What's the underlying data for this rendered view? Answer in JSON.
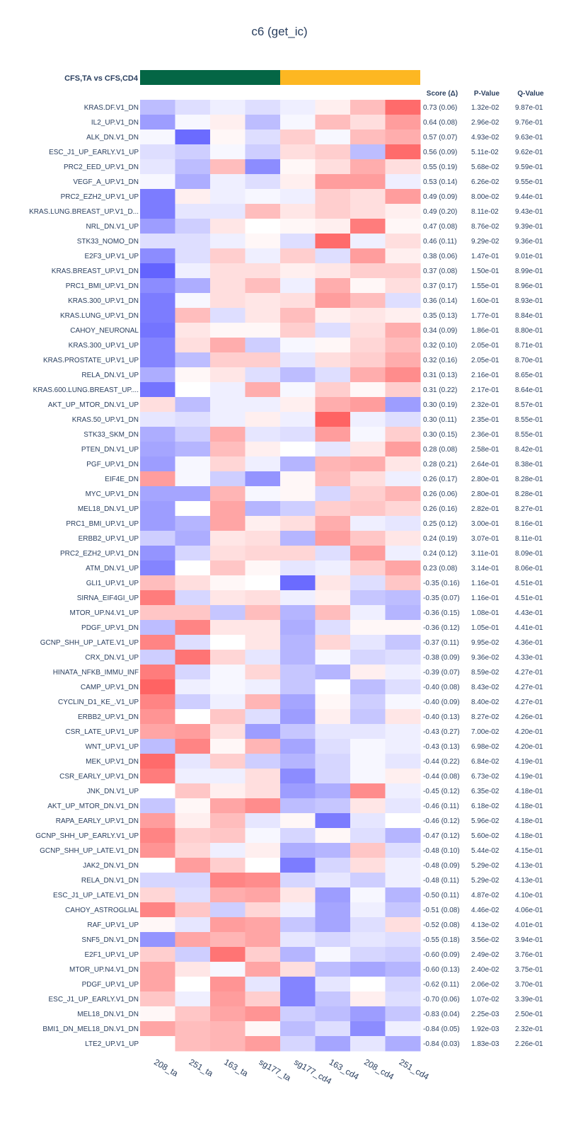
{
  "chart_data": {
    "type": "heatmap",
    "title": "c6 (get_ic)",
    "group_label": "CFS,TA vs CFS,CD4",
    "group_colors": [
      "#046645",
      "#fdb722"
    ],
    "columns": [
      "208_ta",
      "251_ta",
      "163_ta",
      "sg177_ta",
      "sg177_cd4",
      "163_cd4",
      "208_cd4",
      "251_cd4"
    ],
    "column_groups": [
      0,
      0,
      0,
      0,
      1,
      1,
      1,
      1
    ],
    "table_headers": [
      "Score (Δ)",
      "P-Value",
      "Q-Value"
    ],
    "color_scale": {
      "min": -1,
      "max": 1,
      "low": "#5b5bff",
      "mid": "#ffffff",
      "high": "#ff5b5b"
    },
    "rows": [
      {
        "name": "KRAS.DF.V1_DN",
        "score": "0.73 (0.06)",
        "p": "1.32e-02",
        "q": "9.87e-01",
        "values": [
          -0.4,
          -0.2,
          -0.1,
          -0.2,
          -0.1,
          0.1,
          0.4,
          0.9
        ]
      },
      {
        "name": "IL2_UP.V1_DN",
        "score": "0.64 (0.08)",
        "p": "2.96e-02",
        "q": "9.76e-01",
        "values": [
          -0.6,
          -0.05,
          0.1,
          -0.4,
          -0.05,
          0.4,
          0.2,
          0.6
        ]
      },
      {
        "name": "ALK_DN.V1_DN",
        "score": "0.57 (0.07)",
        "p": "4.93e-02",
        "q": "9.63e-01",
        "values": [
          -0.05,
          -0.9,
          0.05,
          -0.2,
          0.3,
          -0.05,
          0.4,
          0.5
        ]
      },
      {
        "name": "ESC_J1_UP_EARLY.V1_UP",
        "score": "0.56 (0.09)",
        "p": "5.11e-02",
        "q": "9.62e-01",
        "values": [
          -0.2,
          -0.3,
          -0.05,
          -0.3,
          0.2,
          0.3,
          -0.4,
          0.9
        ]
      },
      {
        "name": "PRC2_EED_UP.V1_DN",
        "score": "0.55 (0.19)",
        "p": "5.68e-02",
        "q": "9.59e-01",
        "values": [
          -0.15,
          -0.4,
          0.4,
          -0.7,
          0.05,
          0.2,
          0.5,
          0.2
        ]
      },
      {
        "name": "VEGF_A_UP.V1_DN",
        "score": "0.53 (0.14)",
        "p": "6.26e-02",
        "q": "9.55e-01",
        "values": [
          -0.05,
          -0.5,
          -0.1,
          -0.2,
          0.1,
          0.6,
          0.6,
          -0.1
        ]
      },
      {
        "name": "PRC2_EZH2_UP.V1_UP",
        "score": "0.49 (0.09)",
        "p": "8.00e-02",
        "q": "9.44e-01",
        "values": [
          -0.8,
          0.1,
          -0.1,
          -0.05,
          -0.1,
          0.3,
          0.2,
          0.6
        ]
      },
      {
        "name": "KRAS.LUNG.BREAST_UP.V1_D...",
        "score": "0.49 (0.20)",
        "p": "8.11e-02",
        "q": "9.43e-01",
        "values": [
          -0.8,
          -0.15,
          -0.15,
          0.4,
          0.15,
          0.3,
          0.2,
          0.1
        ]
      },
      {
        "name": "NRL_DN.V1_UP",
        "score": "0.47 (0.08)",
        "p": "8.76e-02",
        "q": "9.39e-01",
        "values": [
          -0.6,
          -0.3,
          0.15,
          0.0,
          0.05,
          0.1,
          0.8,
          0.05
        ]
      },
      {
        "name": "STK33_NOMO_DN",
        "score": "0.46 (0.11)",
        "p": "9.29e-02",
        "q": "9.36e-01",
        "values": [
          -0.2,
          -0.2,
          -0.1,
          0.05,
          -0.2,
          0.9,
          -0.1,
          0.2
        ]
      },
      {
        "name": "E2F3_UP.V1_UP",
        "score": "0.38 (0.06)",
        "p": "1.47e-01",
        "q": "9.01e-01",
        "values": [
          -0.7,
          -0.2,
          0.3,
          -0.1,
          0.3,
          -0.2,
          0.6,
          0.1
        ]
      },
      {
        "name": "KRAS.BREAST_UP.V1_DN",
        "score": "0.37 (0.08)",
        "p": "1.50e-01",
        "q": "8.99e-01",
        "values": [
          -0.95,
          -0.1,
          0.2,
          0.2,
          0.1,
          0.15,
          0.3,
          0.3
        ]
      },
      {
        "name": "PRC1_BMI_UP.V1_DN",
        "score": "0.37 (0.17)",
        "p": "1.55e-01",
        "q": "8.96e-01",
        "values": [
          -0.7,
          -0.5,
          0.2,
          0.4,
          -0.1,
          0.5,
          0.05,
          0.2
        ]
      },
      {
        "name": "KRAS.300_UP.V1_DN",
        "score": "0.36 (0.14)",
        "p": "1.60e-01",
        "q": "8.93e-01",
        "values": [
          -0.8,
          -0.05,
          0.2,
          0.15,
          0.2,
          0.6,
          0.4,
          -0.2
        ]
      },
      {
        "name": "KRAS.LUNG_UP.V1_DN",
        "score": "0.35 (0.13)",
        "p": "1.77e-01",
        "q": "8.84e-01",
        "values": [
          -0.8,
          0.4,
          -0.2,
          0.15,
          0.4,
          0.1,
          0.15,
          0.1
        ]
      },
      {
        "name": "CAHOY_NEURONAL",
        "score": "0.34 (0.09)",
        "p": "1.86e-01",
        "q": "8.80e-01",
        "values": [
          -0.85,
          0.15,
          0.05,
          0.05,
          0.3,
          -0.2,
          0.2,
          0.5
        ]
      },
      {
        "name": "KRAS.300_UP.V1_UP",
        "score": "0.32 (0.10)",
        "p": "2.05e-01",
        "q": "8.71e-01",
        "values": [
          -0.75,
          0.2,
          0.5,
          -0.3,
          -0.05,
          0.05,
          0.25,
          0.4
        ]
      },
      {
        "name": "KRAS.PROSTATE_UP.V1_UP",
        "score": "0.32 (0.16)",
        "p": "2.05e-01",
        "q": "8.70e-01",
        "values": [
          -0.75,
          -0.4,
          0.3,
          0.3,
          -0.15,
          0.2,
          0.3,
          0.5
        ]
      },
      {
        "name": "RELA_DN.V1_UP",
        "score": "0.31 (0.13)",
        "p": "2.16e-01",
        "q": "8.65e-01",
        "values": [
          -0.5,
          0.05,
          0.15,
          -0.2,
          -0.4,
          -0.2,
          0.5,
          0.7
        ]
      },
      {
        "name": "KRAS.600.LUNG.BREAST_UP....",
        "score": "0.31 (0.22)",
        "p": "2.17e-01",
        "q": "8.64e-01",
        "values": [
          -0.85,
          0.0,
          -0.1,
          0.5,
          -0.05,
          0.3,
          0.05,
          0.3
        ]
      },
      {
        "name": "AKT_UP_MTOR_DN.V1_UP",
        "score": "0.30 (0.19)",
        "p": "2.32e-01",
        "q": "8.57e-01",
        "values": [
          0.2,
          -0.4,
          -0.1,
          -0.1,
          0.1,
          0.5,
          0.6,
          -0.6
        ]
      },
      {
        "name": "KRAS.50_UP.V1_DN",
        "score": "0.30 (0.11)",
        "p": "2.35e-01",
        "q": "8.55e-01",
        "values": [
          -0.15,
          -0.2,
          -0.1,
          0.1,
          -0.1,
          0.95,
          -0.1,
          -0.2
        ]
      },
      {
        "name": "STK33_SKM_DN",
        "score": "0.30 (0.15)",
        "p": "2.36e-01",
        "q": "8.55e-01",
        "values": [
          -0.5,
          -0.3,
          0.5,
          -0.15,
          -0.2,
          0.6,
          -0.05,
          0.3
        ]
      },
      {
        "name": "PTEN_DN.V1_UP",
        "score": "0.28 (0.08)",
        "p": "2.58e-01",
        "q": "8.42e-01",
        "values": [
          -0.55,
          -0.45,
          0.4,
          0.1,
          0.0,
          -0.15,
          0.15,
          0.6
        ]
      },
      {
        "name": "PGF_UP.V1_DN",
        "score": "0.28 (0.21)",
        "p": "2.64e-01",
        "q": "8.38e-01",
        "values": [
          -0.6,
          -0.05,
          0.25,
          -0.1,
          -0.45,
          0.45,
          0.5,
          0.15
        ]
      },
      {
        "name": "EIF4E_DN",
        "score": "0.26 (0.17)",
        "p": "2.80e-01",
        "q": "8.28e-01",
        "values": [
          0.6,
          -0.05,
          -0.3,
          -0.65,
          0.05,
          0.4,
          0.2,
          -0.1
        ]
      },
      {
        "name": "MYC_UP.V1_DN",
        "score": "0.26 (0.06)",
        "p": "2.80e-01",
        "q": "8.28e-01",
        "values": [
          -0.55,
          -0.55,
          0.45,
          -0.05,
          0.05,
          -0.25,
          0.3,
          0.45
        ]
      },
      {
        "name": "MEL18_DN.V1_UP",
        "score": "0.26 (0.16)",
        "p": "2.82e-01",
        "q": "8.27e-01",
        "values": [
          -0.6,
          0.0,
          0.55,
          -0.45,
          -0.3,
          0.3,
          0.35,
          0.25
        ]
      },
      {
        "name": "PRC1_BMI_UP.V1_UP",
        "score": "0.25 (0.12)",
        "p": "3.00e-01",
        "q": "8.16e-01",
        "values": [
          -0.6,
          -0.45,
          0.55,
          0.1,
          0.2,
          0.5,
          -0.1,
          -0.15
        ]
      },
      {
        "name": "ERBB2_UP.V1_UP",
        "score": "0.24 (0.19)",
        "p": "3.07e-01",
        "q": "8.11e-01",
        "values": [
          -0.3,
          -0.5,
          0.15,
          0.2,
          -0.45,
          0.6,
          0.35,
          0.15
        ]
      },
      {
        "name": "PRC2_EZH2_UP.V1_DN",
        "score": "0.24 (0.12)",
        "p": "3.11e-01",
        "q": "8.09e-01",
        "values": [
          -0.65,
          -0.25,
          0.2,
          0.25,
          0.25,
          -0.2,
          0.6,
          -0.1
        ]
      },
      {
        "name": "ATM_DN.V1_UP",
        "score": "0.23 (0.08)",
        "p": "3.14e-01",
        "q": "8.06e-01",
        "values": [
          -0.75,
          0.0,
          0.35,
          0.05,
          -0.15,
          -0.1,
          0.3,
          0.55
        ]
      },
      {
        "name": "GLI1_UP.V1_UP",
        "score": "-0.35 (0.16)",
        "p": "1.16e-01",
        "q": "4.51e-01",
        "values": [
          0.4,
          0.2,
          0.05,
          0.0,
          -0.9,
          0.15,
          -0.2,
          0.35
        ]
      },
      {
        "name": "SIRNA_EIF4GI_UP",
        "score": "-0.35 (0.07)",
        "p": "1.16e-01",
        "q": "4.51e-01",
        "values": [
          0.8,
          -0.25,
          0.15,
          0.2,
          -0.1,
          0.1,
          -0.35,
          -0.4
        ]
      },
      {
        "name": "MTOR_UP.N4.V1_UP",
        "score": "-0.36 (0.15)",
        "p": "1.08e-01",
        "q": "4.43e-01",
        "values": [
          0.35,
          0.35,
          -0.35,
          0.4,
          -0.45,
          0.4,
          -0.1,
          -0.45
        ]
      },
      {
        "name": "PDGF_UP.V1_DN",
        "score": "-0.36 (0.12)",
        "p": "1.05e-01",
        "q": "4.41e-01",
        "values": [
          -0.4,
          0.75,
          0.15,
          0.15,
          -0.5,
          -0.2,
          0.05,
          0.05
        ]
      },
      {
        "name": "GCNP_SHH_UP_LATE.V1_UP",
        "score": "-0.37 (0.11)",
        "p": "9.95e-02",
        "q": "4.36e-01",
        "values": [
          0.75,
          -0.2,
          0.0,
          0.15,
          -0.45,
          0.25,
          -0.15,
          -0.35
        ]
      },
      {
        "name": "CRX_DN.V1_UP",
        "score": "-0.38 (0.09)",
        "p": "9.36e-02",
        "q": "4.33e-01",
        "values": [
          -0.3,
          0.85,
          0.25,
          -0.15,
          -0.45,
          -0.05,
          -0.25,
          -0.2
        ]
      },
      {
        "name": "HINATA_NFKB_IMMU_INF",
        "score": "-0.39 (0.07)",
        "p": "8.59e-02",
        "q": "4.27e-01",
        "values": [
          0.8,
          -0.25,
          -0.05,
          0.25,
          -0.35,
          -0.45,
          0.1,
          -0.1
        ]
      },
      {
        "name": "CAMP_UP.V1_DN",
        "score": "-0.40 (0.08)",
        "p": "8.43e-02",
        "q": "4.27e-01",
        "values": [
          0.95,
          -0.1,
          -0.05,
          -0.1,
          -0.35,
          0.0,
          -0.4,
          -0.2
        ]
      },
      {
        "name": "CYCLIN_D1_KE_.V1_UP",
        "score": "-0.40 (0.09)",
        "p": "8.40e-02",
        "q": "4.27e-01",
        "values": [
          0.75,
          -0.3,
          -0.1,
          0.45,
          -0.55,
          0.05,
          -0.3,
          -0.05
        ]
      },
      {
        "name": "ERBB2_UP.V1_DN",
        "score": "-0.40 (0.13)",
        "p": "8.27e-02",
        "q": "4.26e-01",
        "values": [
          0.65,
          0.0,
          0.35,
          -0.2,
          -0.6,
          0.1,
          -0.35,
          0.15
        ]
      },
      {
        "name": "CSR_LATE_UP.V1_UP",
        "score": "-0.43 (0.27)",
        "p": "7.00e-02",
        "q": "4.20e-01",
        "values": [
          0.55,
          0.6,
          0.2,
          -0.6,
          -0.35,
          -0.15,
          -0.15,
          -0.1
        ]
      },
      {
        "name": "WNT_UP.V1_UP",
        "score": "-0.43 (0.13)",
        "p": "6.98e-02",
        "q": "4.20e-01",
        "values": [
          -0.4,
          0.75,
          0.05,
          0.45,
          -0.55,
          -0.2,
          -0.05,
          -0.1
        ]
      },
      {
        "name": "MEK_UP.V1_DN",
        "score": "-0.44 (0.22)",
        "p": "6.84e-02",
        "q": "4.19e-01",
        "values": [
          0.9,
          -0.15,
          0.3,
          -0.3,
          -0.45,
          -0.25,
          -0.05,
          -0.15
        ]
      },
      {
        "name": "CSR_EARLY_UP.V1_DN",
        "score": "-0.44 (0.08)",
        "p": "6.73e-02",
        "q": "4.19e-01",
        "values": [
          0.8,
          -0.1,
          -0.1,
          0.2,
          -0.7,
          -0.25,
          -0.05,
          0.1
        ]
      },
      {
        "name": "JNK_DN.V1_UP",
        "score": "-0.45 (0.12)",
        "p": "6.35e-02",
        "q": "4.18e-01",
        "values": [
          0.0,
          0.35,
          0.1,
          0.2,
          -0.6,
          -0.5,
          0.7,
          -0.1
        ]
      },
      {
        "name": "AKT_UP_MTOR_DN.V1_DN",
        "score": "-0.46 (0.11)",
        "p": "6.18e-02",
        "q": "4.18e-01",
        "values": [
          -0.35,
          0.05,
          0.55,
          0.7,
          -0.4,
          -0.35,
          0.15,
          -0.15
        ]
      },
      {
        "name": "RAPA_EARLY_UP.V1_DN",
        "score": "-0.46 (0.12)",
        "p": "5.96e-02",
        "q": "4.18e-01",
        "values": [
          0.6,
          0.1,
          0.4,
          -0.15,
          0.05,
          -0.8,
          -0.15,
          0.0
        ]
      },
      {
        "name": "GCNP_SHH_UP_EARLY.V1_UP",
        "score": "-0.47 (0.12)",
        "p": "5.60e-02",
        "q": "4.18e-01",
        "values": [
          0.75,
          0.3,
          0.35,
          -0.05,
          -0.25,
          0.05,
          -0.2,
          -0.45
        ]
      },
      {
        "name": "GCNP_SHH_UP_LATE.V1_DN",
        "score": "-0.48 (0.10)",
        "p": "5.44e-02",
        "q": "4.15e-01",
        "values": [
          0.65,
          0.25,
          -0.1,
          0.1,
          -0.5,
          -0.45,
          0.35,
          -0.2
        ]
      },
      {
        "name": "JAK2_DN.V1_DN",
        "score": "-0.48 (0.09)",
        "p": "5.29e-02",
        "q": "4.13e-01",
        "values": [
          0.0,
          0.6,
          0.3,
          0.0,
          -0.8,
          -0.25,
          0.2,
          -0.1
        ]
      },
      {
        "name": "RELA_DN.V1_DN",
        "score": "-0.48 (0.11)",
        "p": "5.29e-02",
        "q": "4.13e-01",
        "values": [
          -0.25,
          -0.25,
          0.75,
          0.7,
          -0.25,
          -0.15,
          -0.3,
          -0.1
        ]
      },
      {
        "name": "ESC_J1_UP_LATE.V1_DN",
        "score": "-0.50 (0.11)",
        "p": "4.87e-02",
        "q": "4.10e-01",
        "values": [
          0.25,
          -0.2,
          0.5,
          0.55,
          0.15,
          -0.6,
          -0.05,
          -0.45
        ]
      },
      {
        "name": "CAHOY_ASTROGLIAL",
        "score": "-0.51 (0.08)",
        "p": "4.46e-02",
        "q": "4.06e-01",
        "values": [
          0.75,
          0.35,
          -0.3,
          0.25,
          -0.1,
          -0.55,
          -0.1,
          -0.35
        ]
      },
      {
        "name": "RAF_UP.V1_UP",
        "score": "-0.52 (0.08)",
        "p": "4.13e-02",
        "q": "4.01e-01",
        "values": [
          0.05,
          -0.15,
          0.6,
          0.55,
          -0.35,
          -0.55,
          -0.2,
          0.2
        ]
      },
      {
        "name": "SNF5_DN.V1_DN",
        "score": "-0.55 (0.18)",
        "p": "3.56e-02",
        "q": "3.94e-01",
        "values": [
          -0.65,
          0.55,
          0.45,
          0.55,
          -0.15,
          -0.25,
          -0.15,
          -0.2
        ]
      },
      {
        "name": "E2F1_UP.V1_UP",
        "score": "-0.60 (0.09)",
        "p": "2.49e-02",
        "q": "3.76e-01",
        "values": [
          0.3,
          -0.3,
          0.85,
          0.3,
          -0.45,
          -0.05,
          -0.25,
          -0.3
        ]
      },
      {
        "name": "MTOR_UP.N4.V1_DN",
        "score": "-0.60 (0.13)",
        "p": "2.40e-02",
        "q": "3.75e-01",
        "values": [
          0.55,
          0.15,
          -0.05,
          0.55,
          0.2,
          -0.4,
          -0.55,
          -0.45
        ]
      },
      {
        "name": "PDGF_UP.V1_UP",
        "score": "-0.62 (0.11)",
        "p": "2.06e-02",
        "q": "3.70e-01",
        "values": [
          0.55,
          0.0,
          0.65,
          -0.15,
          -0.75,
          -0.15,
          0.0,
          -0.25
        ]
      },
      {
        "name": "ESC_J1_UP_EARLY.V1_DN",
        "score": "-0.70 (0.06)",
        "p": "1.07e-02",
        "q": "3.39e-01",
        "values": [
          0.35,
          -0.1,
          0.6,
          0.3,
          -0.75,
          -0.35,
          0.1,
          -0.2
        ]
      },
      {
        "name": "MEL18_DN.V1_DN",
        "score": "-0.83 (0.04)",
        "p": "2.25e-03",
        "q": "2.50e-01",
        "values": [
          0.05,
          0.35,
          0.55,
          0.65,
          -0.3,
          -0.4,
          -0.6,
          -0.35
        ]
      },
      {
        "name": "BMI1_DN_MEL18_DN.V1_DN",
        "score": "-0.84 (0.05)",
        "p": "1.92e-03",
        "q": "2.32e-01",
        "values": [
          0.55,
          0.4,
          0.45,
          0.05,
          -0.4,
          -0.2,
          -0.7,
          -0.1
        ]
      },
      {
        "name": "LTE2_UP.V1_UP",
        "score": "-0.84 (0.03)",
        "p": "1.83e-03",
        "q": "2.26e-01",
        "values": [
          0.0,
          0.4,
          0.45,
          0.6,
          -0.25,
          -0.55,
          -0.15,
          -0.5
        ]
      }
    ]
  }
}
